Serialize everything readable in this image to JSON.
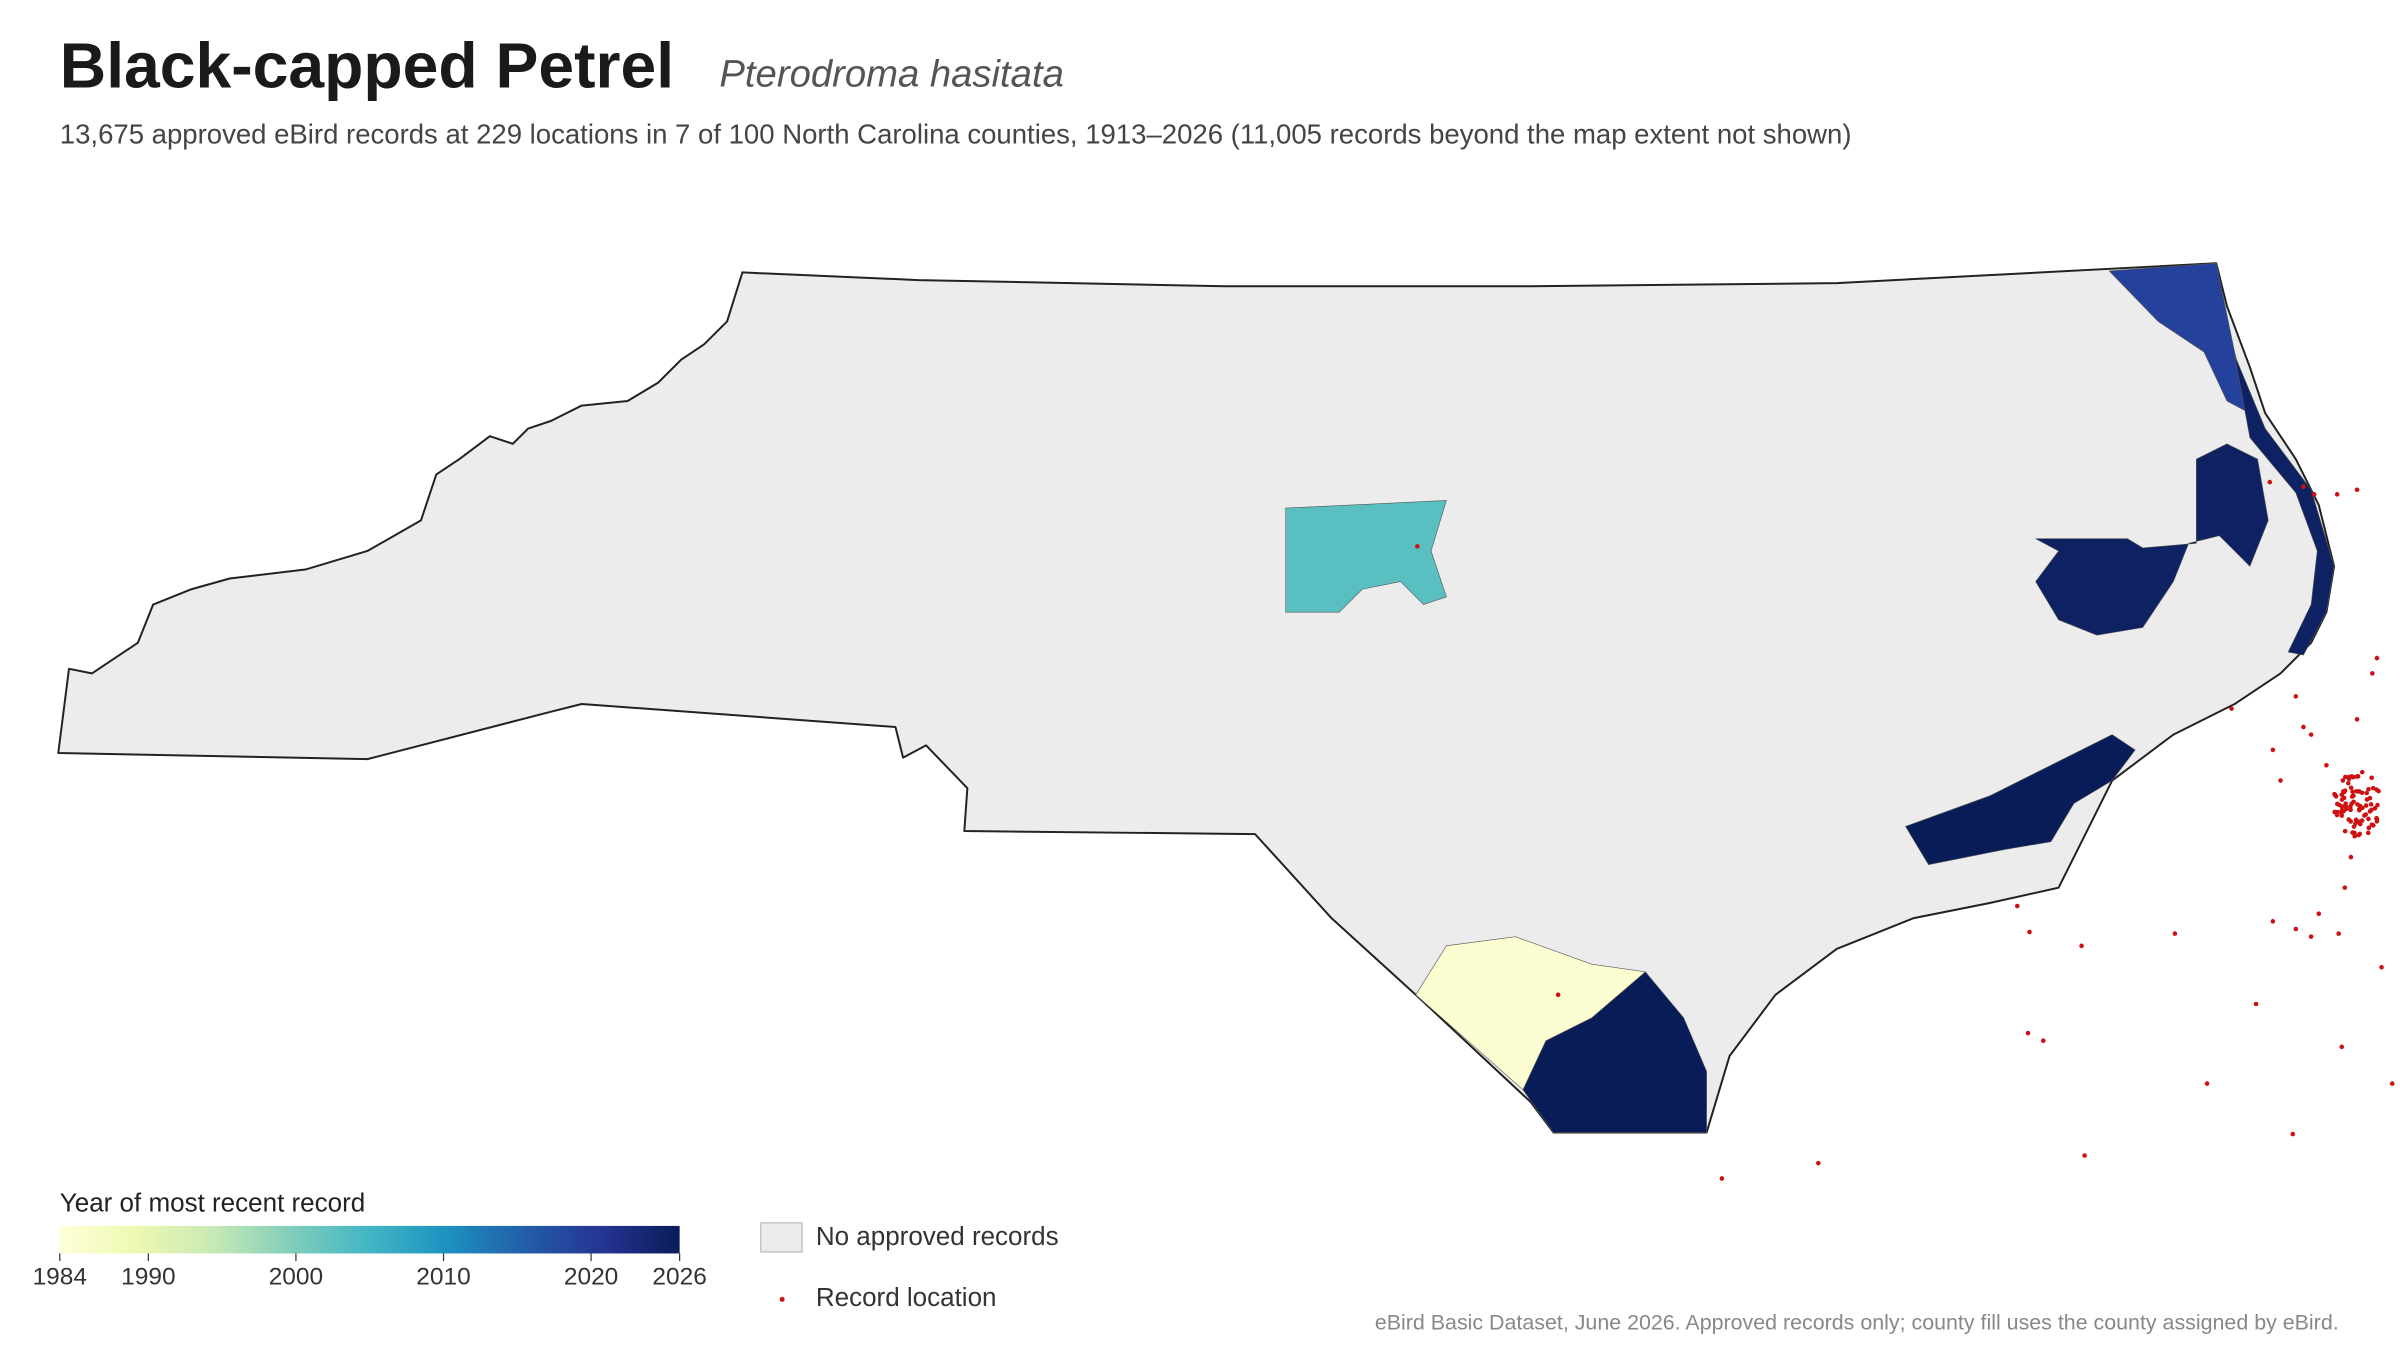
{
  "header": {
    "title": "Black-capped Petrel",
    "species": "Pterodroma hasitata",
    "subtitle": "13,675 approved eBird records at 229 locations in 7 of 100 North Carolina counties, 1913–2026 (11,005 records beyond the map extent not shown)"
  },
  "map": {
    "county_years": [
      2019,
      2025,
      2025,
      2026,
      2026,
      1985,
      2003
    ]
  },
  "colorbar": {
    "title": "Year of most recent record",
    "range": [
      1984,
      2026
    ],
    "ticks": [
      1984,
      1990,
      2000,
      2010,
      2020,
      2026
    ]
  },
  "legend": {
    "no_records": "No approved records",
    "record_location": "Record location"
  },
  "footer": "eBird Basic Dataset, June 2026. Approved records only; county fill uses the county assigned by eBird."
}
